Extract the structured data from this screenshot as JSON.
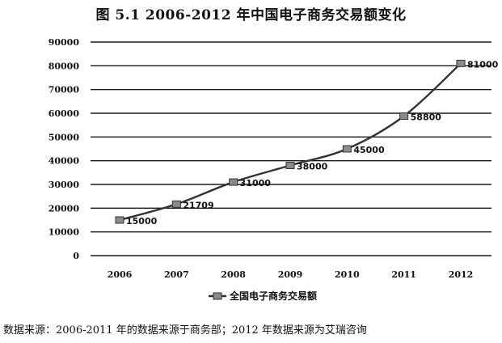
{
  "title": "图 5.1 2006-2012 年中国电子商务交易额变化",
  "source_note": "数据来源：2006-2011 年的数据来源于商务部；2012 年数据来源为艾瑞咨询",
  "chart_data": {
    "type": "line",
    "title": "图 5.1 2006-2012 年中国电子商务交易额变化",
    "xlabel": "",
    "ylabel": "",
    "categories": [
      "2006",
      "2007",
      "2008",
      "2009",
      "2010",
      "2011",
      "2012"
    ],
    "series": [
      {
        "name": "全国电子商务交易额",
        "values": [
          15000,
          21709,
          31000,
          38000,
          45000,
          58800,
          81000
        ],
        "labels": [
          "15000",
          "21709",
          "31000",
          "38000",
          "45000",
          "58800",
          "81000"
        ],
        "color": "#333333"
      }
    ],
    "ylim": [
      0,
      90000
    ],
    "yticks": [
      0,
      10000,
      20000,
      30000,
      40000,
      50000,
      60000,
      70000,
      80000,
      90000
    ],
    "grid": true,
    "legend": "bottom"
  }
}
